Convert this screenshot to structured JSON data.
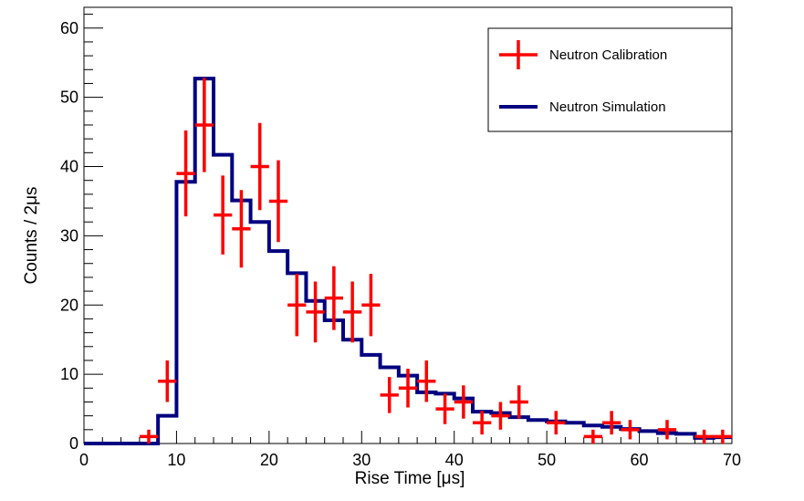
{
  "chart_data": {
    "type": "histogram",
    "xlabel": "Rise Time [μs]",
    "ylabel": "Counts / 2μs",
    "xlim": [
      0,
      70
    ],
    "ylim": [
      0,
      63
    ],
    "x_ticks": [
      0,
      10,
      20,
      30,
      40,
      50,
      60,
      70
    ],
    "x_tick_labels": [
      "0",
      "10",
      "20",
      "30",
      "40",
      "50",
      "60",
      "70"
    ],
    "y_ticks": [
      0,
      10,
      20,
      30,
      40,
      50,
      60
    ],
    "y_tick_labels": [
      "0",
      "10",
      "20",
      "30",
      "40",
      "50",
      "60"
    ],
    "legend_position": "top-right",
    "colors": {
      "calibration": "#ff0000",
      "simulation": "#000080"
    },
    "series": [
      {
        "name": "Neutron Calibration",
        "kind": "points-with-errorbars",
        "x": [
          7,
          9,
          11,
          13,
          15,
          17,
          19,
          21,
          23,
          25,
          27,
          29,
          31,
          33,
          35,
          37,
          39,
          41,
          43,
          45,
          47,
          51,
          55,
          57,
          59,
          63,
          67,
          69
        ],
        "y": [
          1,
          9,
          39,
          46,
          33,
          31,
          40,
          35,
          20,
          19,
          21,
          19,
          20,
          7,
          8,
          9,
          5,
          6,
          3,
          4,
          6,
          3,
          1,
          3,
          2,
          2,
          1,
          1
        ],
        "yerr": [
          1,
          3,
          6.2,
          6.8,
          5.7,
          5.6,
          6.3,
          5.9,
          4.5,
          4.4,
          4.6,
          4.4,
          4.5,
          2.6,
          2.8,
          3,
          2.2,
          2.4,
          1.7,
          2,
          2.4,
          1.7,
          1,
          1.7,
          1.4,
          1.4,
          1,
          1
        ],
        "xerr": 1
      },
      {
        "name": "Neutron Simulation",
        "kind": "step-histogram",
        "bin_width": 2,
        "bin_edges_start": 0,
        "values": [
          0,
          0,
          0,
          0,
          4,
          37.8,
          52.7,
          41.7,
          35.1,
          32,
          27.8,
          24.6,
          20.6,
          17.8,
          15,
          12.8,
          11,
          9.8,
          7.4,
          7.2,
          6.5,
          4.6,
          4.4,
          3.8,
          3.4,
          3.2,
          3,
          2.6,
          2.4,
          2.1,
          1.8,
          1.5,
          1.4,
          0.8,
          0.9
        ]
      }
    ]
  }
}
